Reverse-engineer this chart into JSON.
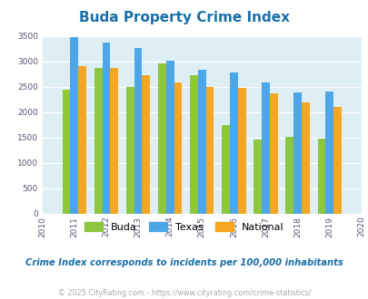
{
  "title": "Buda Property Crime Index",
  "bar_years": [
    2011,
    2012,
    2013,
    2014,
    2015,
    2016,
    2017,
    2018,
    2019
  ],
  "buda": [
    2450,
    2870,
    2500,
    2960,
    2730,
    1740,
    1460,
    1520,
    1480
  ],
  "texas": [
    3470,
    3360,
    3270,
    3010,
    2830,
    2780,
    2580,
    2380,
    2400
  ],
  "national": [
    2900,
    2870,
    2720,
    2590,
    2490,
    2470,
    2370,
    2200,
    2110
  ],
  "buda_color": "#8dc63f",
  "texas_color": "#4da6e8",
  "national_color": "#f5a623",
  "bg_color": "#ddeef5",
  "ylim": [
    0,
    3500
  ],
  "yticks": [
    0,
    500,
    1000,
    1500,
    2000,
    2500,
    3000,
    3500
  ],
  "title_color": "#1a6fa8",
  "title_fontsize": 11,
  "legend_labels": [
    "Buda",
    "Texas",
    "National"
  ],
  "subtitle": "Crime Index corresponds to incidents per 100,000 inhabitants",
  "footer": "© 2025 CityRating.com - https://www.cityrating.com/crime-statistics/",
  "subtitle_color": "#1a6fa8",
  "footer_color": "#aaaaaa",
  "bar_width": 0.25
}
